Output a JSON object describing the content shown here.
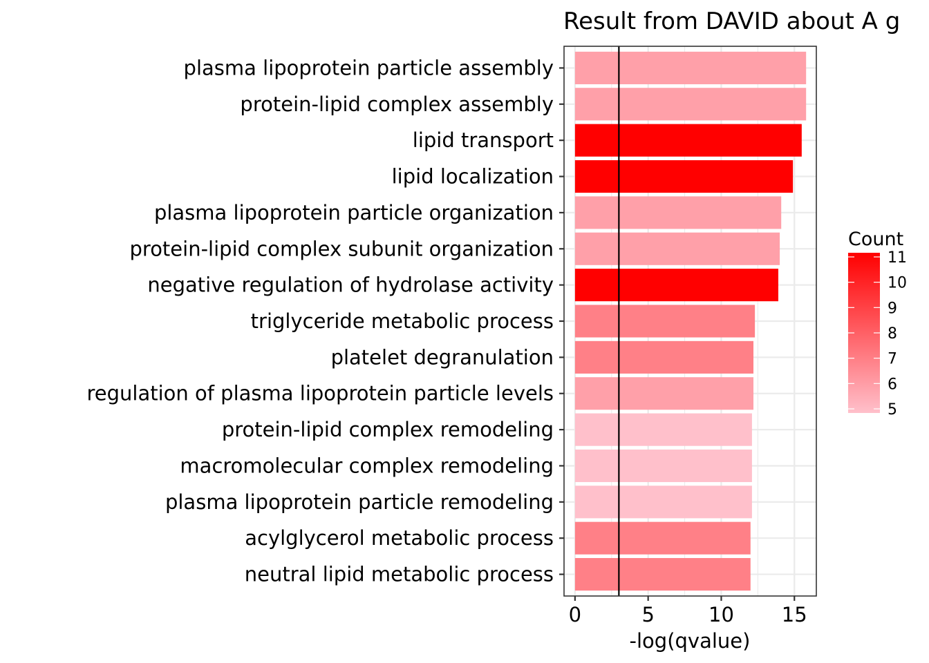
{
  "chart_data": {
    "type": "bar",
    "orientation": "horizontal",
    "title": "Result from DAVID about A g",
    "xlabel": "-log(qvalue)",
    "ylabel": "",
    "xlim": [
      -0.75,
      16.5
    ],
    "xticks": [
      0,
      5,
      10,
      15
    ],
    "reference_line_x": 3,
    "grid": true,
    "legend": {
      "title": "Count",
      "placement": "right",
      "min": 5,
      "max": 11,
      "ticks": [
        5,
        6,
        7,
        8,
        9,
        10,
        11
      ],
      "color_low": "#FFC0CB",
      "color_high": "#FF0000"
    },
    "categories": [
      "plasma lipoprotein particle assembly",
      "protein-lipid complex assembly",
      "lipid transport",
      "lipid localization",
      "plasma lipoprotein particle organization",
      "protein-lipid complex subunit organization",
      "negative regulation of hydrolase activity",
      "triglyceride metabolic process",
      "platelet degranulation",
      "regulation of plasma lipoprotein particle levels",
      "protein-lipid complex remodeling",
      "macromolecular complex remodeling",
      "plasma lipoprotein particle remodeling",
      "acylglycerol metabolic process",
      "neutral lipid metabolic process"
    ],
    "values": [
      15.8,
      15.8,
      15.5,
      14.9,
      14.1,
      14.0,
      13.9,
      12.3,
      12.2,
      12.2,
      12.1,
      12.1,
      12.1,
      12.0,
      12.0
    ],
    "counts": [
      6,
      6,
      11,
      11,
      6,
      6,
      11,
      7,
      7,
      6,
      5,
      5,
      5,
      7,
      7
    ]
  }
}
